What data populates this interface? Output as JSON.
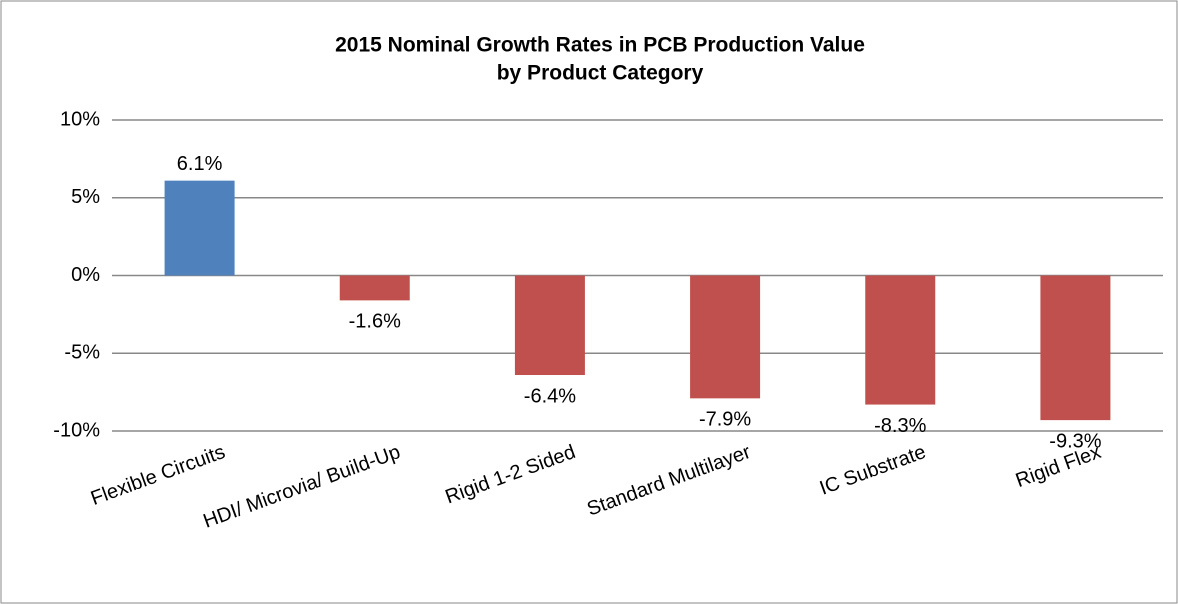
{
  "chart_data": {
    "type": "bar",
    "title": [
      "2015 Nominal Growth Rates in PCB Production Value",
      "by Product Category"
    ],
    "categories": [
      "Flexible Circuits",
      "HDI/ Microvia/ Build-Up",
      "Rigid 1-2 Sided",
      "Standard Multilayer",
      "IC Substrate",
      "Rigid Flex"
    ],
    "values": [
      6.1,
      -1.6,
      -6.4,
      -7.9,
      -8.3,
      -9.3
    ],
    "value_labels": [
      "6.1%",
      "-1.6%",
      "-6.4%",
      "-7.9%",
      "-8.3%",
      "-9.3%"
    ],
    "colors": [
      "#4f81bd",
      "#c0504d",
      "#c0504d",
      "#c0504d",
      "#c0504d",
      "#c0504d"
    ],
    "ylim": [
      -10,
      10
    ],
    "yticks": [
      {
        "value": -10,
        "label": "-10%"
      },
      {
        "value": -5,
        "label": "-5%"
      },
      {
        "value": 0,
        "label": "0%"
      },
      {
        "value": 5,
        "label": "5%"
      },
      {
        "value": 10,
        "label": "10%"
      }
    ],
    "grid": true
  }
}
